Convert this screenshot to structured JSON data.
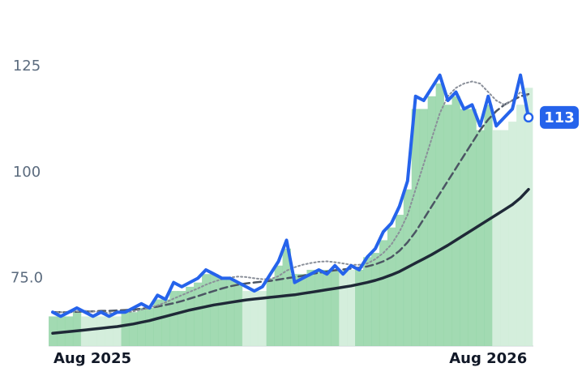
{
  "chart_data": {
    "type": "line",
    "categories": [
      "Aug 2025",
      null,
      null,
      null,
      null,
      null,
      null,
      null,
      null,
      null,
      null,
      null,
      null,
      null,
      null,
      null,
      null,
      null,
      null,
      null,
      null,
      null,
      null,
      null,
      null,
      null,
      null,
      null,
      null,
      null,
      null,
      null,
      null,
      null,
      null,
      null,
      null,
      null,
      null,
      null,
      null,
      null,
      null,
      null,
      null,
      null,
      null,
      null,
      null,
      null,
      null,
      null,
      null,
      null,
      "Aug 2026",
      null,
      null,
      null,
      null,
      null
    ],
    "ylim": [
      59,
      135
    ],
    "yticks": [
      {
        "value": 75,
        "label": "75.0"
      },
      100,
      125
    ],
    "bars": {
      "values": [
        66,
        66,
        66,
        67,
        66,
        66,
        66,
        66,
        66,
        67,
        67,
        68,
        68,
        70,
        70,
        72,
        72,
        73,
        74,
        76,
        76,
        75,
        75,
        74,
        72,
        72,
        72,
        75,
        78,
        82,
        76,
        76,
        77,
        77,
        77,
        77,
        77,
        77,
        77,
        80,
        81,
        84,
        87,
        90,
        96,
        115,
        115,
        118,
        121,
        116,
        118,
        115,
        115,
        110,
        116,
        110,
        110,
        112,
        116,
        120
      ],
      "colors": [
        "#92d3a5",
        "#92d3a5",
        "#92d3a5",
        "#92d3a5",
        "#cdebd6",
        "#cdebd6",
        "#cdebd6",
        "#cdebd6",
        "#cdebd6",
        "#92d3a5",
        "#92d3a5",
        "#92d3a5",
        "#92d3a5",
        "#92d3a5",
        "#92d3a5",
        "#92d3a5",
        "#92d3a5",
        "#92d3a5",
        "#92d3a5",
        "#92d3a5",
        "#92d3a5",
        "#92d3a5",
        "#92d3a5",
        "#92d3a5",
        "#cdebd6",
        "#cdebd6",
        "#cdebd6",
        "#92d3a5",
        "#92d3a5",
        "#92d3a5",
        "#92d3a5",
        "#92d3a5",
        "#92d3a5",
        "#92d3a5",
        "#92d3a5",
        "#92d3a5",
        "#cdebd6",
        "#cdebd6",
        "#92d3a5",
        "#92d3a5",
        "#92d3a5",
        "#92d3a5",
        "#92d3a5",
        "#92d3a5",
        "#92d3a5",
        "#92d3a5",
        "#92d3a5",
        "#92d3a5",
        "#92d3a5",
        "#92d3a5",
        "#92d3a5",
        "#92d3a5",
        "#92d3a5",
        "#92d3a5",
        "#92d3a5",
        "#cdebd6",
        "#cdebd6",
        "#cdebd6",
        "#cdebd6",
        "#cdebd6"
      ]
    },
    "series": [
      {
        "color": "#1f2937",
        "style": "solid",
        "width": 3.5,
        "values": [
          62,
          62.2,
          62.4,
          62.6,
          62.8,
          63,
          63.2,
          63.4,
          63.6,
          63.9,
          64.2,
          64.6,
          65,
          65.5,
          66,
          66.5,
          67,
          67.5,
          67.9,
          68.3,
          68.7,
          69,
          69.3,
          69.6,
          69.9,
          70.1,
          70.3,
          70.5,
          70.7,
          70.9,
          71.1,
          71.4,
          71.7,
          72,
          72.3,
          72.6,
          72.9,
          73.2,
          73.6,
          74,
          74.5,
          75.1,
          75.8,
          76.6,
          77.6,
          78.6,
          79.6,
          80.6,
          81.7,
          82.8,
          84,
          85.2,
          86.4,
          87.6,
          88.8,
          90,
          91.2,
          92.4,
          94,
          96
        ]
      },
      {
        "color": "#4b5563",
        "style": "dashed",
        "width": 2.5,
        "values": [
          67,
          67,
          67,
          67.1,
          67.2,
          67.2,
          67.3,
          67.3,
          67.4,
          67.5,
          67.6,
          67.8,
          68,
          68.3,
          68.7,
          69.1,
          69.6,
          70.2,
          70.8,
          71.4,
          72,
          72.6,
          73.1,
          73.5,
          73.8,
          74,
          74.2,
          74.4,
          74.7,
          75,
          75.3,
          75.6,
          76,
          76.3,
          76.6,
          76.9,
          77.1,
          77.3,
          77.5,
          77.8,
          78.3,
          79,
          80,
          81.5,
          83.5,
          86,
          89,
          92,
          95,
          98,
          101,
          104,
          107,
          110,
          112.5,
          114.5,
          116,
          117,
          118,
          118.5
        ]
      },
      {
        "color": "#8a8f99",
        "style": "dotted",
        "width": 2,
        "values": [
          67,
          67,
          67,
          67.2,
          67.3,
          67.2,
          67,
          66.8,
          66.8,
          66.9,
          67.2,
          67.6,
          68,
          68.6,
          69.3,
          70.2,
          71,
          71.8,
          72.6,
          73.5,
          74.2,
          74.8,
          75.2,
          75.4,
          75.3,
          75,
          74.8,
          74.8,
          75.5,
          76.8,
          77.6,
          78.2,
          78.6,
          78.9,
          79,
          78.8,
          78.5,
          78.2,
          78.2,
          78.5,
          79.5,
          81,
          83,
          86,
          90,
          96,
          102,
          108,
          114,
          118,
          120,
          121,
          121.5,
          121,
          119,
          117,
          116,
          117,
          119,
          118
        ]
      },
      {
        "color": "#2563eb",
        "style": "solid",
        "width": 4,
        "badge": true,
        "values": [
          67,
          66,
          67,
          68,
          67,
          66,
          67,
          66,
          67,
          67,
          68,
          69,
          68,
          71,
          70,
          74,
          73,
          74,
          75,
          77,
          76,
          75,
          75,
          74,
          73,
          72,
          73,
          76,
          79,
          84,
          74,
          75,
          76,
          77,
          76,
          78,
          76,
          78,
          77,
          80,
          82,
          86,
          88,
          92,
          98,
          118,
          117,
          120,
          123,
          117,
          119,
          115,
          116,
          111,
          118,
          111,
          113,
          115,
          123,
          113
        ]
      }
    ]
  }
}
